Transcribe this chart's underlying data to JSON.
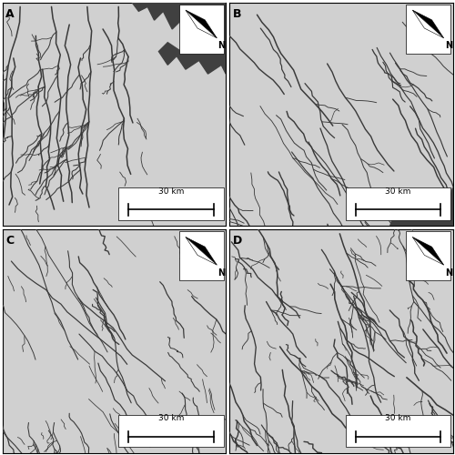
{
  "bg_color": "#d0d0d0",
  "line_color": "#3a3a3a",
  "water_color": "#404040",
  "fig_bg": "#ffffff",
  "panel_labels": [
    "A",
    "B",
    "C",
    "D"
  ],
  "label_fontsize": 9,
  "north_fontsize": 7,
  "scale_fontsize": 6.5
}
